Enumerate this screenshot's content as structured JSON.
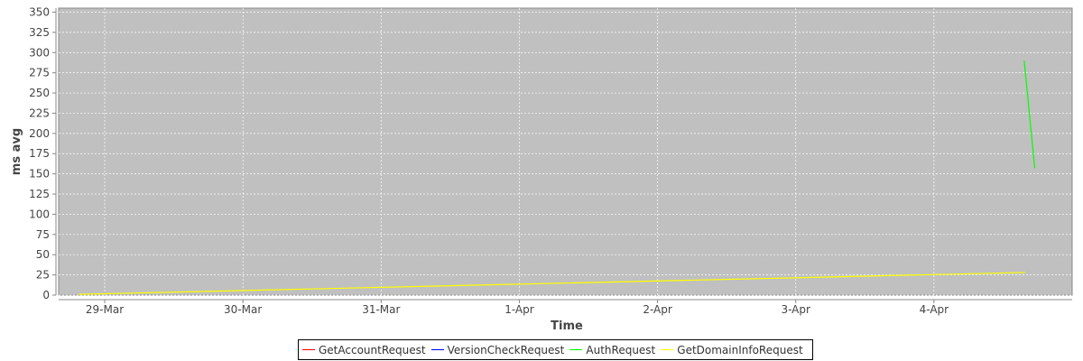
{
  "chart_data": {
    "type": "line",
    "title": "",
    "xlabel": "Time",
    "ylabel": "ms avg",
    "xlim": [
      "28-Mar 16:00",
      "5-Apr 00:00"
    ],
    "ylim": [
      0,
      355
    ],
    "x_ticks": [
      "29-Mar",
      "30-Mar",
      "31-Mar",
      "1-Apr",
      "2-Apr",
      "3-Apr",
      "4-Apr"
    ],
    "y_ticks": [
      0,
      25,
      50,
      75,
      100,
      125,
      150,
      175,
      200,
      225,
      250,
      275,
      300,
      325,
      350
    ],
    "grid": true,
    "legend": "bottom",
    "background": "#c0c0c0",
    "series": [
      {
        "name": "GetAccountRequest",
        "color": "#ff0000",
        "points": []
      },
      {
        "name": "VersionCheckRequest",
        "color": "#0000ff",
        "points": []
      },
      {
        "name": "AuthRequest",
        "color": "#00ff00",
        "points": [
          [
            "4-Apr 15:40",
            290
          ],
          [
            "4-Apr 17:30",
            157
          ]
        ]
      },
      {
        "name": "GetDomainInfoRequest",
        "color": "#ffff00",
        "points": [
          [
            "28-Mar 19:30",
            1
          ],
          [
            "4-Apr 15:50",
            28
          ]
        ]
      }
    ]
  }
}
